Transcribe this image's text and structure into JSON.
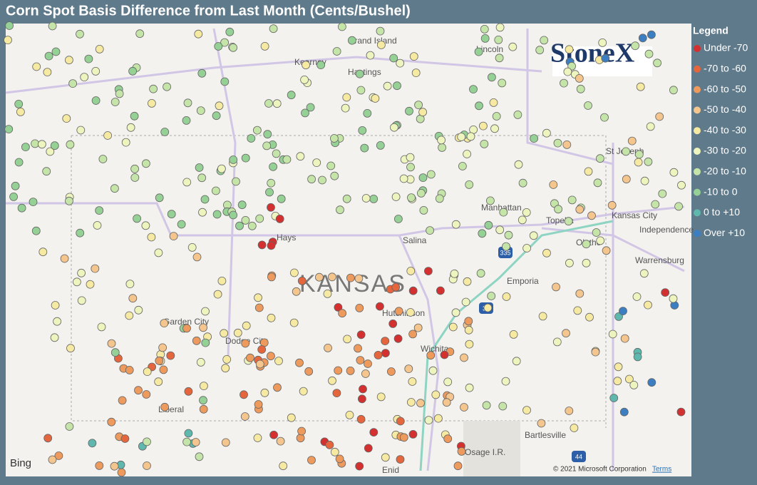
{
  "title": "Corn Spot Basis Difference from Last Month (Cents/Bushel)",
  "legend": {
    "title": "Legend",
    "items": [
      {
        "label": "Under -70",
        "color": "#d3302f"
      },
      {
        "label": "-70 to -60",
        "color": "#e5653c"
      },
      {
        "label": "-60 to -50",
        "color": "#ee9a5c"
      },
      {
        "label": "-50 to -40",
        "color": "#f4c58d"
      },
      {
        "label": "-40 to -30",
        "color": "#f6eaa2"
      },
      {
        "label": "-30 to -20",
        "color": "#eef4bd"
      },
      {
        "label": "-20 to -10",
        "color": "#c5e4a8"
      },
      {
        "label": "-10 to 0",
        "color": "#95d095"
      },
      {
        "label": "0 to +10",
        "color": "#5fb8ad"
      },
      {
        "label": "Over +10",
        "color": "#3b7fc2"
      }
    ]
  },
  "map": {
    "labels": [
      "Grand Island",
      "Kearney",
      "Hastings",
      "Lincoln",
      "St Joseph",
      "Kansas City",
      "Independence",
      "Manhattan",
      "Topeka",
      "Olathe",
      "Salina",
      "Hays",
      "Emporia",
      "Warrensburg",
      "Garden City",
      "Dodge City",
      "Hutchinson",
      "Wichita",
      "Liberal",
      "Bartlesville",
      "Osage I.R.",
      "Enid"
    ],
    "state_label": "KANSAS",
    "highway_shields": [
      "335",
      "35",
      "44"
    ],
    "provider": "Bing",
    "copyright": "© 2021 Microsoft Corporation",
    "terms": "Terms"
  },
  "logo": "StoneX"
}
